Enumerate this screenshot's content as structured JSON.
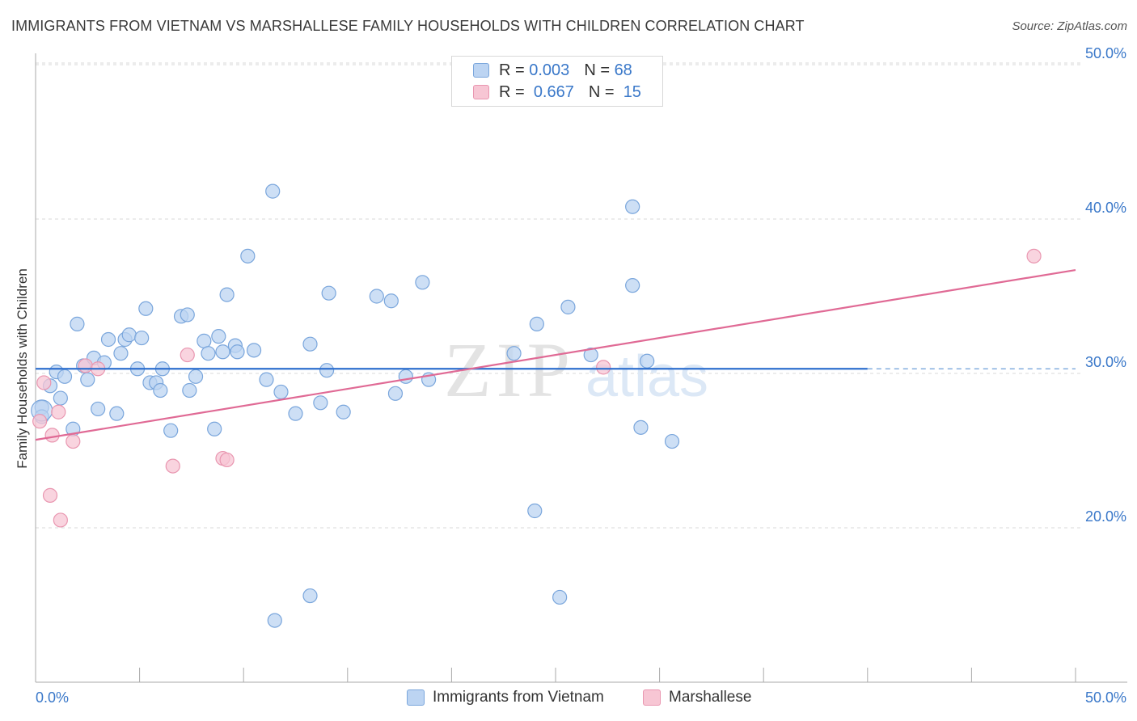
{
  "header": {
    "title": "IMMIGRANTS FROM VIETNAM VS MARSHALLESE FAMILY HOUSEHOLDS WITH CHILDREN CORRELATION CHART",
    "source": "Source: ZipAtlas.com"
  },
  "watermark": {
    "zip": "ZIP",
    "atlas": "atlas"
  },
  "legend": {
    "rows": [
      {
        "r_label": "R =",
        "r_value": "0.003",
        "n_label": "N =",
        "n_value": "68"
      },
      {
        "r_label": "R =",
        "r_value": "0.667",
        "n_label": "N =",
        "n_value": "15"
      }
    ]
  },
  "bottom_legend": {
    "series1": "Immigrants from Vietnam",
    "series2": "Marshallese"
  },
  "colors": {
    "blue_fill": "#bcd4f2",
    "blue_stroke": "#7aa6dc",
    "blue_line": "#2e6fce",
    "pink_fill": "#f7c6d4",
    "pink_stroke": "#e996b0",
    "pink_line": "#e06a95",
    "tick_label": "#3a78c9",
    "grid": "#d9d9d9"
  },
  "chart_data": {
    "type": "scatter",
    "title": "IMMIGRANTS FROM VIETNAM VS MARSHALLESE FAMILY HOUSEHOLDS WITH CHILDREN CORRELATION CHART",
    "xlabel": "",
    "ylabel": "Family Households with Children",
    "xlim": [
      0,
      50
    ],
    "ylim": [
      10,
      52
    ],
    "x_tick_labels": [
      "0.0%",
      "50.0%"
    ],
    "y_ticks": [
      20,
      30,
      40,
      50
    ],
    "y_tick_labels": [
      "20.0%",
      "30.0%",
      "40.0%",
      "50.0%"
    ],
    "grid": true,
    "legend_placement": "top-center",
    "series": [
      {
        "name": "Immigrants from Vietnam",
        "R": 0.003,
        "N": 68,
        "trend": {
          "x": [
            0,
            40
          ],
          "y": [
            30.3,
            30.3
          ],
          "dashed_extension_to": 50
        },
        "points": [
          [
            0.3,
            27.8
          ],
          [
            0.3,
            27.2
          ],
          [
            0.7,
            29.2
          ],
          [
            1.0,
            30.1
          ],
          [
            1.2,
            28.4
          ],
          [
            1.4,
            29.8
          ],
          [
            1.8,
            26.4
          ],
          [
            2.0,
            33.2
          ],
          [
            2.3,
            30.5
          ],
          [
            2.5,
            29.6
          ],
          [
            2.8,
            31.0
          ],
          [
            3.0,
            27.7
          ],
          [
            3.3,
            30.7
          ],
          [
            3.5,
            32.2
          ],
          [
            3.9,
            27.4
          ],
          [
            4.1,
            31.3
          ],
          [
            4.3,
            32.2
          ],
          [
            4.5,
            32.5
          ],
          [
            4.9,
            30.3
          ],
          [
            5.1,
            32.3
          ],
          [
            5.3,
            34.2
          ],
          [
            5.5,
            29.4
          ],
          [
            5.8,
            29.4
          ],
          [
            6.0,
            28.9
          ],
          [
            6.1,
            30.3
          ],
          [
            6.5,
            26.3
          ],
          [
            7.0,
            33.7
          ],
          [
            7.3,
            33.8
          ],
          [
            7.4,
            28.9
          ],
          [
            7.7,
            29.8
          ],
          [
            8.1,
            32.1
          ],
          [
            8.3,
            31.3
          ],
          [
            8.6,
            26.4
          ],
          [
            8.8,
            32.4
          ],
          [
            9.0,
            31.4
          ],
          [
            9.2,
            35.1
          ],
          [
            9.6,
            31.8
          ],
          [
            9.7,
            31.4
          ],
          [
            10.2,
            37.6
          ],
          [
            10.5,
            31.5
          ],
          [
            11.1,
            29.6
          ],
          [
            11.4,
            41.8
          ],
          [
            11.8,
            28.8
          ],
          [
            12.5,
            27.4
          ],
          [
            13.2,
            31.9
          ],
          [
            13.7,
            28.1
          ],
          [
            14.0,
            30.2
          ],
          [
            14.1,
            35.2
          ],
          [
            14.8,
            27.5
          ],
          [
            16.4,
            35.0
          ],
          [
            17.1,
            34.7
          ],
          [
            17.3,
            28.7
          ],
          [
            17.8,
            29.8
          ],
          [
            18.6,
            35.9
          ],
          [
            18.9,
            29.6
          ],
          [
            23.0,
            31.3
          ],
          [
            24.1,
            33.2
          ],
          [
            25.6,
            34.3
          ],
          [
            26.7,
            31.2
          ],
          [
            28.7,
            40.8
          ],
          [
            28.7,
            35.7
          ],
          [
            29.1,
            26.5
          ],
          [
            29.4,
            30.8
          ],
          [
            30.6,
            25.6
          ],
          [
            24.0,
            21.1
          ],
          [
            11.5,
            14.0
          ],
          [
            13.2,
            15.6
          ],
          [
            25.2,
            15.5
          ]
        ]
      },
      {
        "name": "Marshallese",
        "R": 0.667,
        "N": 15,
        "trend": {
          "x": [
            0,
            50
          ],
          "y": [
            25.7,
            36.7
          ]
        },
        "points": [
          [
            0.2,
            26.9
          ],
          [
            0.4,
            29.4
          ],
          [
            0.7,
            22.1
          ],
          [
            0.8,
            26.0
          ],
          [
            1.1,
            27.5
          ],
          [
            1.2,
            20.5
          ],
          [
            1.8,
            25.6
          ],
          [
            2.4,
            30.5
          ],
          [
            3.0,
            30.3
          ],
          [
            6.6,
            24.0
          ],
          [
            7.3,
            31.2
          ],
          [
            9.0,
            24.5
          ],
          [
            9.2,
            24.4
          ],
          [
            27.3,
            30.4
          ],
          [
            48.0,
            37.6
          ]
        ]
      }
    ]
  }
}
